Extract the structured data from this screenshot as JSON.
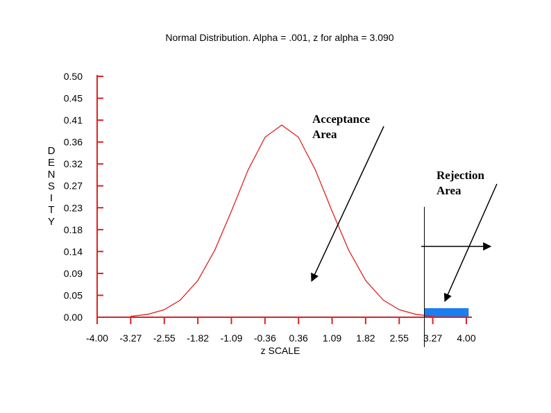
{
  "chart_data": {
    "type": "line",
    "title": "Normal Distribution. Alpha = .001, z for alpha = 3.090",
    "xlabel": "z SCALE",
    "ylabel": "DENSITY",
    "x_ticks": [
      "-4.00",
      "-3.27",
      "-2.55",
      "-1.82",
      "-1.09",
      "-0.36",
      "0.36",
      "1.09",
      "1.82",
      "2.55",
      "3.27",
      "4.00"
    ],
    "y_ticks": [
      "0.00",
      "0.05",
      "0.09",
      "0.14",
      "0.18",
      "0.23",
      "0.27",
      "0.32",
      "0.36",
      "0.41",
      "0.45",
      "0.50"
    ],
    "xlim": [
      -4.0,
      4.0
    ],
    "ylim": [
      0.0,
      0.5
    ],
    "grid": false,
    "series": [
      {
        "type": "line",
        "color": "#dd2222",
        "x": [
          -3.27,
          -2.9,
          -2.55,
          -2.2,
          -1.82,
          -1.45,
          -1.09,
          -0.73,
          -0.36,
          0.0,
          0.36,
          0.73,
          1.09,
          1.45,
          1.82,
          2.2,
          2.55,
          2.9,
          3.27
        ],
        "y": [
          0.0019,
          0.006,
          0.0154,
          0.0355,
          0.0761,
          0.1394,
          0.2203,
          0.3056,
          0.3739,
          0.3989,
          0.3739,
          0.3056,
          0.2203,
          0.1394,
          0.0761,
          0.0355,
          0.0154,
          0.006,
          0.0019
        ]
      }
    ],
    "critical_value": 3.09,
    "rejection_region": {
      "x_start": 3.09,
      "x_end": 4.05,
      "color": "#1a7ef0"
    },
    "annotations": [
      {
        "lines": [
          "Acceptance",
          "Area"
        ]
      },
      {
        "lines": [
          "Rejection",
          "Area"
        ]
      }
    ]
  }
}
